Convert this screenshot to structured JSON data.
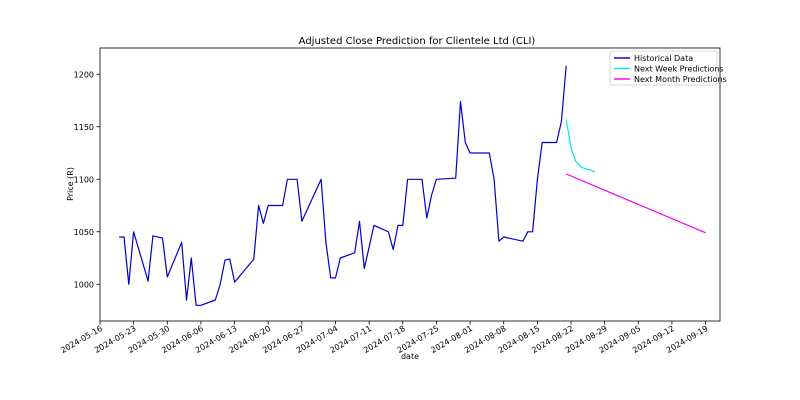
{
  "chart_data": {
    "type": "line",
    "title": "Adjusted Close Prediction for Clientele Ltd (CLI)",
    "xlabel": "date",
    "ylabel": "Price (R)",
    "x_axis": "date",
    "xlim": [
      "2024-05-16",
      "2024-09-22"
    ],
    "ylim": [
      965,
      1225
    ],
    "xticks": [
      "2024-05-16",
      "2024-05-23",
      "2024-05-30",
      "2024-06-06",
      "2024-06-13",
      "2024-06-20",
      "2024-06-27",
      "2024-07-04",
      "2024-07-11",
      "2024-07-18",
      "2024-07-25",
      "2024-08-01",
      "2024-08-08",
      "2024-08-15",
      "2024-08-22",
      "2024-08-29",
      "2024-09-05",
      "2024-09-12",
      "2024-09-19"
    ],
    "yticks": [
      1000,
      1050,
      1100,
      1150,
      1200
    ],
    "grid": false,
    "legend_position": "top-right",
    "series": [
      {
        "name": "Historical Data",
        "color": "#0000cd",
        "points": [
          [
            "2024-05-20",
            1045
          ],
          [
            "2024-05-21",
            1045
          ],
          [
            "2024-05-22",
            1000
          ],
          [
            "2024-05-23",
            1050
          ],
          [
            "2024-05-26",
            1003
          ],
          [
            "2024-05-27",
            1046
          ],
          [
            "2024-05-29",
            1044
          ],
          [
            "2024-05-30",
            1007
          ],
          [
            "2024-06-02",
            1040
          ],
          [
            "2024-06-03",
            985
          ],
          [
            "2024-06-04",
            1025
          ],
          [
            "2024-06-05",
            980
          ],
          [
            "2024-06-06",
            980
          ],
          [
            "2024-06-09",
            985
          ],
          [
            "2024-06-10",
            1000
          ],
          [
            "2024-06-11",
            1023
          ],
          [
            "2024-06-12",
            1024
          ],
          [
            "2024-06-13",
            1002
          ],
          [
            "2024-06-17",
            1024
          ],
          [
            "2024-06-18",
            1075
          ],
          [
            "2024-06-19",
            1058
          ],
          [
            "2024-06-20",
            1075
          ],
          [
            "2024-06-23",
            1075
          ],
          [
            "2024-06-24",
            1100
          ],
          [
            "2024-06-26",
            1100
          ],
          [
            "2024-06-27",
            1060
          ],
          [
            "2024-07-01",
            1100
          ],
          [
            "2024-07-02",
            1040
          ],
          [
            "2024-07-03",
            1006
          ],
          [
            "2024-07-04",
            1006
          ],
          [
            "2024-07-05",
            1025
          ],
          [
            "2024-07-08",
            1030
          ],
          [
            "2024-07-09",
            1060
          ],
          [
            "2024-07-10",
            1015
          ],
          [
            "2024-07-12",
            1056
          ],
          [
            "2024-07-15",
            1050
          ],
          [
            "2024-07-16",
            1033
          ],
          [
            "2024-07-17",
            1056
          ],
          [
            "2024-07-18",
            1056
          ],
          [
            "2024-07-19",
            1100
          ],
          [
            "2024-07-22",
            1100
          ],
          [
            "2024-07-23",
            1063
          ],
          [
            "2024-07-24",
            1085
          ],
          [
            "2024-07-25",
            1100
          ],
          [
            "2024-07-29",
            1101
          ],
          [
            "2024-07-30",
            1174
          ],
          [
            "2024-07-31",
            1135
          ],
          [
            "2024-08-01",
            1125
          ],
          [
            "2024-08-05",
            1125
          ],
          [
            "2024-08-06",
            1100
          ],
          [
            "2024-08-07",
            1041
          ],
          [
            "2024-08-08",
            1045
          ],
          [
            "2024-08-12",
            1041
          ],
          [
            "2024-08-13",
            1050
          ],
          [
            "2024-08-14",
            1050
          ],
          [
            "2024-08-15",
            1100
          ],
          [
            "2024-08-16",
            1135
          ],
          [
            "2024-08-19",
            1135
          ],
          [
            "2024-08-20",
            1155
          ],
          [
            "2024-08-21",
            1208
          ]
        ]
      },
      {
        "name": "Next Week Predictions",
        "color": "#00e5ee",
        "points": [
          [
            "2024-08-21",
            1157
          ],
          [
            "2024-08-22",
            1130
          ],
          [
            "2024-08-23",
            1117
          ],
          [
            "2024-08-24",
            1112
          ],
          [
            "2024-08-25",
            1110
          ],
          [
            "2024-08-26",
            1109
          ],
          [
            "2024-08-27",
            1107
          ]
        ]
      },
      {
        "name": "Next Month Predictions",
        "color": "#ee00ee",
        "points": [
          [
            "2024-08-21",
            1105
          ],
          [
            "2024-09-19",
            1049
          ]
        ]
      }
    ]
  }
}
